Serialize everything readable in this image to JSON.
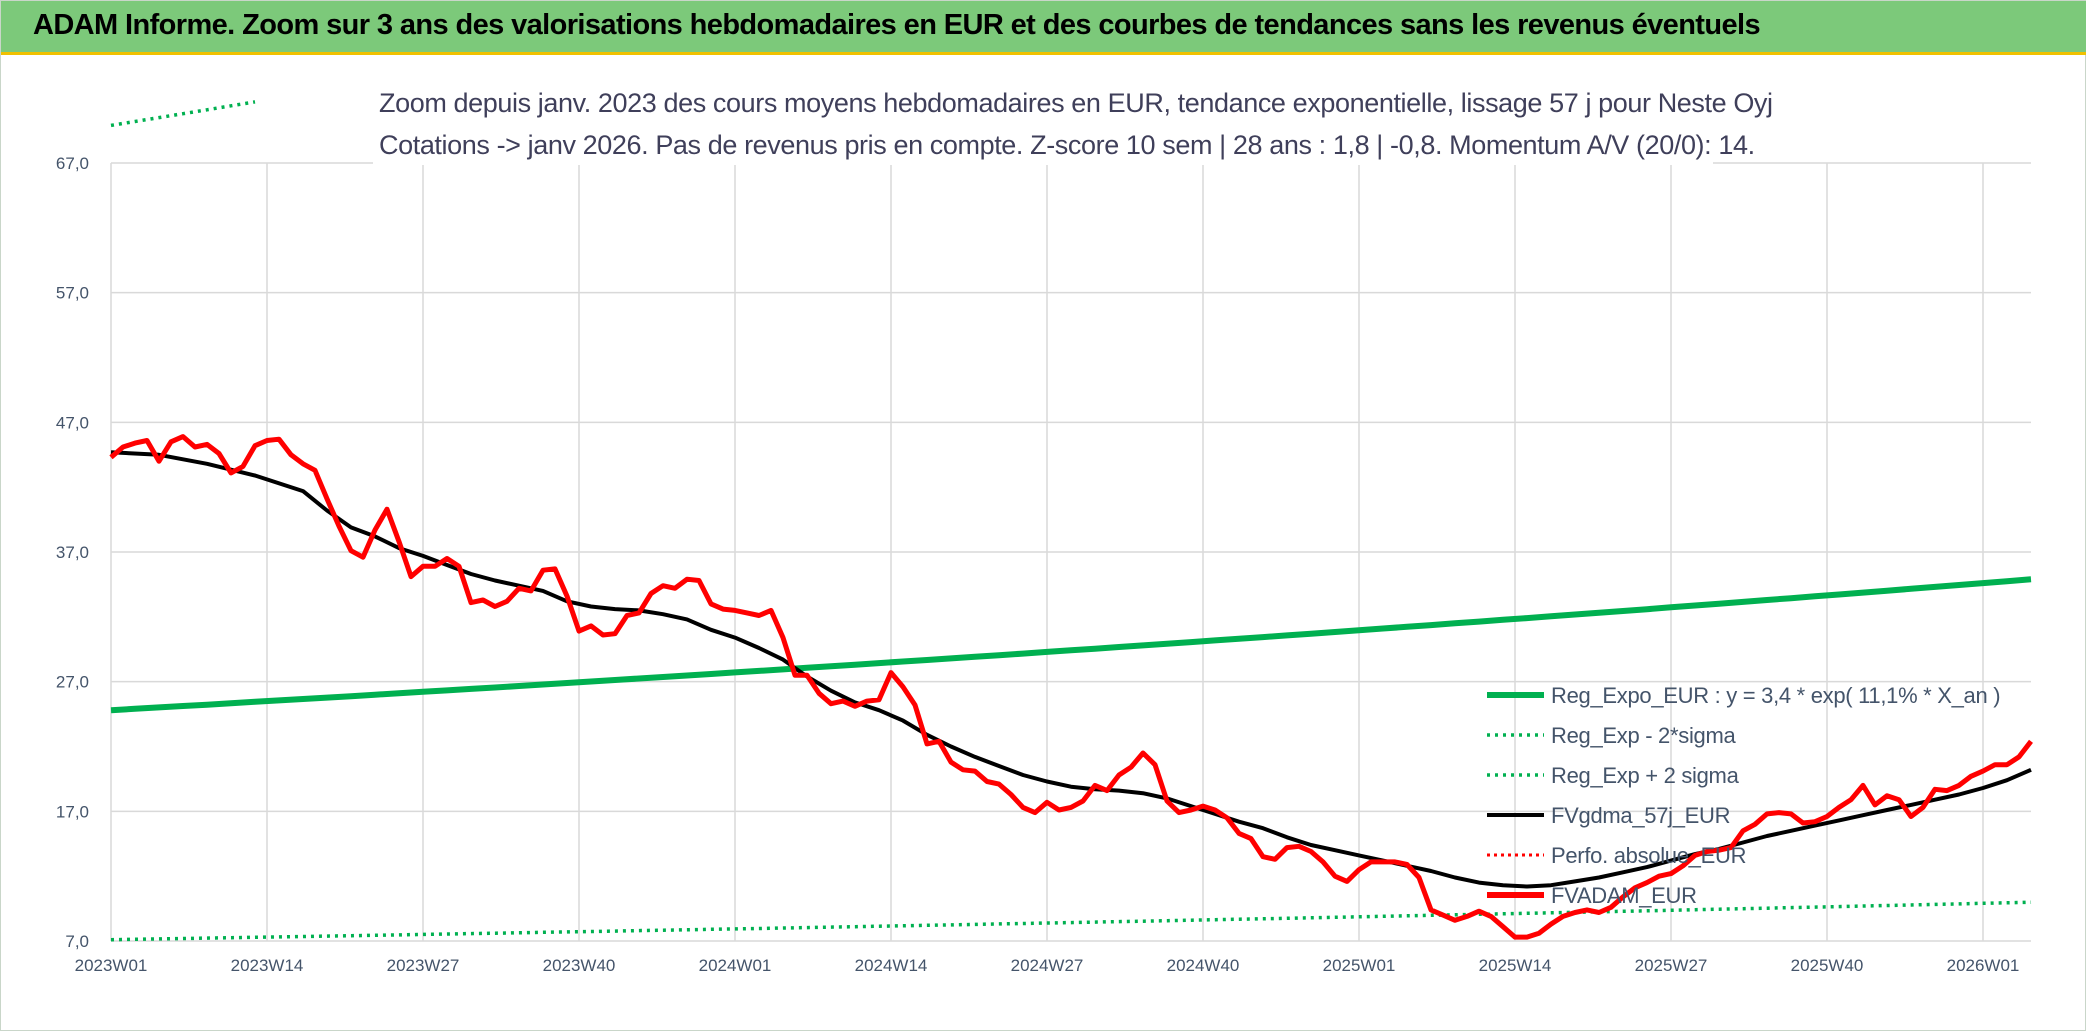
{
  "header": {
    "title": "ADAM Informe. Zoom sur 3 ans des valorisations hebdomadaires en EUR et des courbes de tendances sans les revenus éventuels"
  },
  "chart_data": {
    "type": "line",
    "subtitle_lines": [
      "Zoom depuis janv. 2023 des cours moyens hebdomadaires en EUR, tendance exponentielle, lissage 57 j pour Neste Oyj",
      "Cotations -> janv 2026. Pas de revenus pris en compte. Z-score 10 sem | 28 ans : 1,8 | -0,8. Momentum A/V (20/0): 14."
    ],
    "ylim": [
      7,
      67
    ],
    "y_ticks": [
      "7,0",
      "17,0",
      "27,0",
      "37,0",
      "47,0",
      "57,0",
      "67,0"
    ],
    "x_ticks": [
      "2023W01",
      "2023W14",
      "2023W27",
      "2023W40",
      "2024W01",
      "2024W14",
      "2024W27",
      "2024W40",
      "2025W01",
      "2025W14",
      "2025W27",
      "2025W40",
      "2026W01"
    ],
    "xlim_weeks": [
      0,
      160
    ],
    "grid": true,
    "legend_position": "right",
    "colors": {
      "reg_expo": "#00b050",
      "sigma_bands": "#00b050",
      "fvgdma": "#000000",
      "perfo": "#ff0000",
      "fvadam": "#ff0000"
    },
    "series": [
      {
        "name": "Reg_Expo_EUR : y = 3,4 * exp( 11,1% *  X_an )",
        "style": "solid-thick",
        "start": 24.8,
        "growth_per_year": 0.111
      },
      {
        "name": "Reg_Exp - 2*sigma",
        "style": "dotted",
        "start": 7.1,
        "growth_per_year": 0.111
      },
      {
        "name": "Reg_Exp + 2 sigma",
        "style": "dotted",
        "start": 69.9,
        "growth_per_year": 0.111
      },
      {
        "name": "FVgdma_57j_EUR",
        "style": "solid",
        "points": [
          [
            0,
            44.7
          ],
          [
            4,
            44.5
          ],
          [
            8,
            43.8
          ],
          [
            12,
            42.9
          ],
          [
            16,
            41.7
          ],
          [
            18,
            40.2
          ],
          [
            20,
            38.9
          ],
          [
            22,
            38.2
          ],
          [
            24,
            37.3
          ],
          [
            26,
            36.7
          ],
          [
            28,
            36.0
          ],
          [
            30,
            35.3
          ],
          [
            32,
            34.8
          ],
          [
            34,
            34.4
          ],
          [
            36,
            34.0
          ],
          [
            38,
            33.2
          ],
          [
            40,
            32.8
          ],
          [
            42,
            32.6
          ],
          [
            44,
            32.5
          ],
          [
            46,
            32.2
          ],
          [
            48,
            31.8
          ],
          [
            50,
            31.0
          ],
          [
            52,
            30.4
          ],
          [
            54,
            29.6
          ],
          [
            56,
            28.7
          ],
          [
            58,
            27.4
          ],
          [
            60,
            26.3
          ],
          [
            62,
            25.4
          ],
          [
            64,
            24.8
          ],
          [
            66,
            24.0
          ],
          [
            68,
            22.9
          ],
          [
            70,
            22.0
          ],
          [
            72,
            21.2
          ],
          [
            74,
            20.5
          ],
          [
            76,
            19.8
          ],
          [
            78,
            19.3
          ],
          [
            80,
            18.9
          ],
          [
            82,
            18.7
          ],
          [
            84,
            18.6
          ],
          [
            86,
            18.4
          ],
          [
            88,
            18.0
          ],
          [
            90,
            17.4
          ],
          [
            92,
            16.8
          ],
          [
            94,
            16.2
          ],
          [
            96,
            15.7
          ],
          [
            98,
            15.0
          ],
          [
            100,
            14.4
          ],
          [
            102,
            14.0
          ],
          [
            104,
            13.6
          ],
          [
            106,
            13.2
          ],
          [
            108,
            12.8
          ],
          [
            110,
            12.4
          ],
          [
            112,
            11.9
          ],
          [
            114,
            11.5
          ],
          [
            116,
            11.3
          ],
          [
            118,
            11.2
          ],
          [
            120,
            11.3
          ],
          [
            122,
            11.6
          ],
          [
            124,
            11.9
          ],
          [
            126,
            12.3
          ],
          [
            128,
            12.7
          ],
          [
            130,
            13.2
          ],
          [
            132,
            13.7
          ],
          [
            134,
            14.1
          ],
          [
            136,
            14.6
          ],
          [
            138,
            15.1
          ],
          [
            140,
            15.5
          ],
          [
            142,
            15.9
          ],
          [
            144,
            16.3
          ],
          [
            146,
            16.7
          ],
          [
            148,
            17.1
          ],
          [
            150,
            17.5
          ],
          [
            152,
            17.9
          ],
          [
            154,
            18.3
          ],
          [
            156,
            18.8
          ],
          [
            158,
            19.4
          ],
          [
            160,
            20.2
          ]
        ]
      },
      {
        "name": "Perfo. absolue_EUR",
        "style": "dotted",
        "points": []
      },
      {
        "name": "FVADAM_EUR",
        "style": "solid-thick",
        "points": [
          [
            0,
            44.3
          ],
          [
            1,
            45.1
          ],
          [
            2,
            45.4
          ],
          [
            3,
            45.6
          ],
          [
            4,
            44.0
          ],
          [
            5,
            45.5
          ],
          [
            6,
            45.9
          ],
          [
            7,
            45.1
          ],
          [
            8,
            45.3
          ],
          [
            9,
            44.6
          ],
          [
            10,
            43.1
          ],
          [
            11,
            43.6
          ],
          [
            12,
            45.2
          ],
          [
            13,
            45.6
          ],
          [
            14,
            45.7
          ],
          [
            15,
            44.5
          ],
          [
            16,
            43.8
          ],
          [
            17,
            43.3
          ],
          [
            18,
            41.1
          ],
          [
            19,
            39.0
          ],
          [
            20,
            37.1
          ],
          [
            21,
            36.6
          ],
          [
            22,
            38.7
          ],
          [
            23,
            40.3
          ],
          [
            24,
            37.8
          ],
          [
            25,
            35.1
          ],
          [
            26,
            35.9
          ],
          [
            27,
            35.9
          ],
          [
            28,
            36.5
          ],
          [
            29,
            35.9
          ],
          [
            30,
            33.1
          ],
          [
            31,
            33.3
          ],
          [
            32,
            32.8
          ],
          [
            33,
            33.2
          ],
          [
            34,
            34.2
          ],
          [
            35,
            34.0
          ],
          [
            36,
            35.6
          ],
          [
            37,
            35.7
          ],
          [
            38,
            33.6
          ],
          [
            39,
            30.9
          ],
          [
            40,
            31.3
          ],
          [
            41,
            30.6
          ],
          [
            42,
            30.7
          ],
          [
            43,
            32.1
          ],
          [
            44,
            32.3
          ],
          [
            45,
            33.8
          ],
          [
            46,
            34.4
          ],
          [
            47,
            34.2
          ],
          [
            48,
            34.9
          ],
          [
            49,
            34.8
          ],
          [
            50,
            33.0
          ],
          [
            51,
            32.6
          ],
          [
            52,
            32.5
          ],
          [
            53,
            32.3
          ],
          [
            54,
            32.1
          ],
          [
            55,
            32.5
          ],
          [
            56,
            30.4
          ],
          [
            57,
            27.5
          ],
          [
            58,
            27.5
          ],
          [
            59,
            26.1
          ],
          [
            60,
            25.3
          ],
          [
            61,
            25.5
          ],
          [
            62,
            25.1
          ],
          [
            63,
            25.5
          ],
          [
            64,
            25.6
          ],
          [
            65,
            27.7
          ],
          [
            66,
            26.6
          ],
          [
            67,
            25.2
          ],
          [
            68,
            22.2
          ],
          [
            69,
            22.4
          ],
          [
            70,
            20.8
          ],
          [
            71,
            20.2
          ],
          [
            72,
            20.1
          ],
          [
            73,
            19.3
          ],
          [
            74,
            19.1
          ],
          [
            75,
            18.3
          ],
          [
            76,
            17.3
          ],
          [
            77,
            16.9
          ],
          [
            78,
            17.7
          ],
          [
            79,
            17.1
          ],
          [
            80,
            17.3
          ],
          [
            81,
            17.8
          ],
          [
            82,
            19.0
          ],
          [
            83,
            18.6
          ],
          [
            84,
            19.8
          ],
          [
            85,
            20.4
          ],
          [
            86,
            21.5
          ],
          [
            87,
            20.6
          ],
          [
            88,
            17.8
          ],
          [
            89,
            16.9
          ],
          [
            90,
            17.1
          ],
          [
            91,
            17.4
          ],
          [
            92,
            17.1
          ],
          [
            93,
            16.5
          ],
          [
            94,
            15.3
          ],
          [
            95,
            14.9
          ],
          [
            96,
            13.5
          ],
          [
            97,
            13.3
          ],
          [
            98,
            14.2
          ],
          [
            99,
            14.3
          ],
          [
            100,
            13.9
          ],
          [
            101,
            13.1
          ],
          [
            102,
            12.0
          ],
          [
            103,
            11.6
          ],
          [
            104,
            12.5
          ],
          [
            105,
            13.1
          ],
          [
            106,
            13.1
          ],
          [
            107,
            13.1
          ],
          [
            108,
            12.9
          ],
          [
            109,
            11.9
          ],
          [
            110,
            9.4
          ],
          [
            111,
            9.0
          ],
          [
            112,
            8.6
          ],
          [
            113,
            8.9
          ],
          [
            114,
            9.3
          ],
          [
            115,
            8.9
          ],
          [
            116,
            8.1
          ],
          [
            117,
            7.3
          ],
          [
            118,
            7.3
          ],
          [
            119,
            7.6
          ],
          [
            120,
            8.3
          ],
          [
            121,
            8.9
          ],
          [
            122,
            9.2
          ],
          [
            123,
            9.4
          ],
          [
            124,
            9.2
          ],
          [
            125,
            9.6
          ],
          [
            126,
            10.4
          ],
          [
            127,
            11.1
          ],
          [
            128,
            11.5
          ],
          [
            129,
            12.0
          ],
          [
            130,
            12.2
          ],
          [
            131,
            12.8
          ],
          [
            132,
            13.6
          ],
          [
            133,
            13.9
          ],
          [
            134,
            14.0
          ],
          [
            135,
            14.2
          ],
          [
            136,
            15.5
          ],
          [
            137,
            16.0
          ],
          [
            138,
            16.8
          ],
          [
            139,
            16.9
          ],
          [
            140,
            16.8
          ],
          [
            141,
            16.1
          ],
          [
            142,
            16.2
          ],
          [
            143,
            16.6
          ],
          [
            144,
            17.3
          ],
          [
            145,
            17.9
          ],
          [
            146,
            19.0
          ],
          [
            147,
            17.5
          ],
          [
            148,
            18.2
          ],
          [
            149,
            17.9
          ],
          [
            150,
            16.6
          ],
          [
            151,
            17.3
          ],
          [
            152,
            18.7
          ],
          [
            153,
            18.6
          ],
          [
            154,
            19.0
          ],
          [
            155,
            19.7
          ],
          [
            156,
            20.1
          ],
          [
            157,
            20.6
          ],
          [
            158,
            20.6
          ],
          [
            159,
            21.2
          ],
          [
            160,
            22.4
          ]
        ]
      }
    ]
  }
}
